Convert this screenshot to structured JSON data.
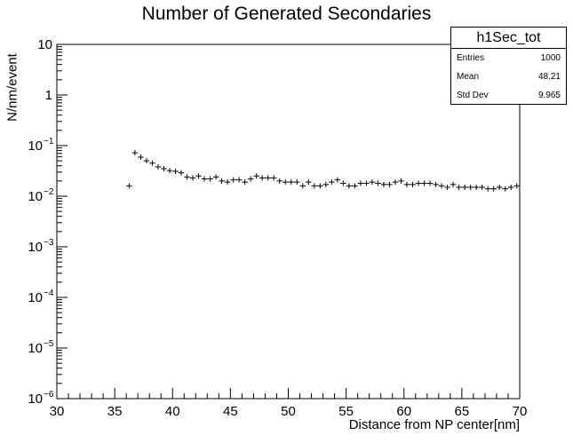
{
  "chart_data": {
    "type": "scatter",
    "title": "Number of Generated Secondaries",
    "xlabel": "Distance from NP center[nm]",
    "ylabel": "N/nm/event",
    "xlim": [
      30,
      70
    ],
    "ylim": [
      1e-06,
      10
    ],
    "yscale": "log",
    "x_ticks": [
      "30",
      "35",
      "40",
      "45",
      "50",
      "55",
      "60",
      "65",
      "70"
    ],
    "y_ticks": [
      "10",
      "1",
      "10^-1",
      "10^-2",
      "10^-3",
      "10^-4",
      "10^-5",
      "10^-6"
    ],
    "grid": false,
    "legend_position": "top-right stats box",
    "bin_width": 0.5,
    "series": [
      {
        "name": "h1Sec_tot",
        "x": [
          36.25,
          36.75,
          37.25,
          37.75,
          38.25,
          38.75,
          39.25,
          39.75,
          40.25,
          40.75,
          41.25,
          41.75,
          42.25,
          42.75,
          43.25,
          43.75,
          44.25,
          44.75,
          45.25,
          45.75,
          46.25,
          46.75,
          47.25,
          47.75,
          48.25,
          48.75,
          49.25,
          49.75,
          50.25,
          50.75,
          51.25,
          51.75,
          52.25,
          52.75,
          53.25,
          53.75,
          54.25,
          54.75,
          55.25,
          55.75,
          56.25,
          56.75,
          57.25,
          57.75,
          58.25,
          58.75,
          59.25,
          59.75,
          60.25,
          60.75,
          61.25,
          61.75,
          62.25,
          62.75,
          63.25,
          63.75,
          64.25,
          64.75,
          65.25,
          65.75,
          66.25,
          66.75,
          67.25,
          67.75,
          68.25,
          68.75,
          69.25,
          69.75
        ],
        "values": [
          0.016,
          0.072,
          0.059,
          0.05,
          0.045,
          0.038,
          0.035,
          0.032,
          0.031,
          0.029,
          0.024,
          0.023,
          0.025,
          0.022,
          0.022,
          0.024,
          0.02,
          0.019,
          0.021,
          0.021,
          0.019,
          0.022,
          0.025,
          0.023,
          0.023,
          0.023,
          0.02,
          0.019,
          0.019,
          0.019,
          0.016,
          0.019,
          0.016,
          0.016,
          0.017,
          0.019,
          0.021,
          0.018,
          0.016,
          0.016,
          0.018,
          0.018,
          0.019,
          0.018,
          0.017,
          0.017,
          0.019,
          0.02,
          0.017,
          0.017,
          0.018,
          0.018,
          0.018,
          0.017,
          0.016,
          0.015,
          0.017,
          0.015,
          0.015,
          0.015,
          0.015,
          0.015,
          0.014,
          0.014,
          0.015,
          0.014,
          0.015,
          0.016
        ]
      }
    ],
    "stats_box": {
      "name": "h1Sec_tot",
      "entries": "1000",
      "mean": "48.21",
      "std_dev": "9.965"
    }
  },
  "labels": {
    "entries": "Entries",
    "mean": "Mean",
    "std_dev": "Std Dev"
  }
}
